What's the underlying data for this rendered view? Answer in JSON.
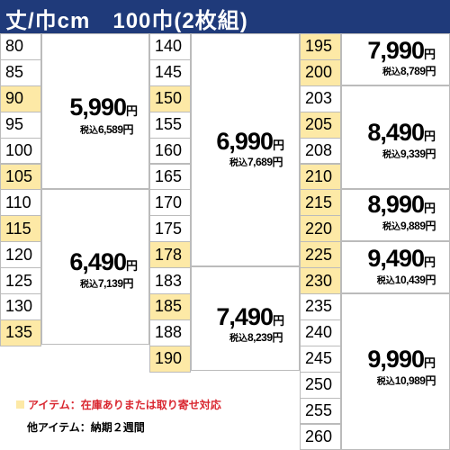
{
  "header": {
    "title": "丈/巾cm　100巾(2枚組)"
  },
  "columns": [
    {
      "sizes": [
        {
          "v": "80",
          "hl": false
        },
        {
          "v": "85",
          "hl": false
        },
        {
          "v": "90",
          "hl": true
        },
        {
          "v": "95",
          "hl": false
        },
        {
          "v": "100",
          "hl": false
        },
        {
          "v": "105",
          "hl": true
        },
        {
          "v": "110",
          "hl": false
        },
        {
          "v": "115",
          "hl": true
        },
        {
          "v": "120",
          "hl": false
        },
        {
          "v": "125",
          "hl": false
        },
        {
          "v": "130",
          "hl": false
        },
        {
          "v": "135",
          "hl": true
        }
      ]
    },
    {
      "sizes": [
        {
          "v": "140",
          "hl": false
        },
        {
          "v": "145",
          "hl": false
        },
        {
          "v": "150",
          "hl": true
        },
        {
          "v": "155",
          "hl": false
        },
        {
          "v": "160",
          "hl": false
        },
        {
          "v": "165",
          "hl": false
        },
        {
          "v": "170",
          "hl": false
        },
        {
          "v": "175",
          "hl": false
        },
        {
          "v": "178",
          "hl": true
        },
        {
          "v": "183",
          "hl": false
        },
        {
          "v": "185",
          "hl": true
        },
        {
          "v": "188",
          "hl": false
        },
        {
          "v": "190",
          "hl": true
        }
      ]
    },
    {
      "sizes": [
        {
          "v": "195",
          "hl": true
        },
        {
          "v": "200",
          "hl": true
        },
        {
          "v": "203",
          "hl": false
        },
        {
          "v": "205",
          "hl": true
        },
        {
          "v": "208",
          "hl": false
        },
        {
          "v": "210",
          "hl": true
        },
        {
          "v": "215",
          "hl": true
        },
        {
          "v": "220",
          "hl": true
        },
        {
          "v": "225",
          "hl": true
        },
        {
          "v": "230",
          "hl": true
        },
        {
          "v": "235",
          "hl": false
        },
        {
          "v": "240",
          "hl": false
        },
        {
          "v": "245",
          "hl": false
        },
        {
          "v": "250",
          "hl": false
        },
        {
          "v": "255",
          "hl": false
        },
        {
          "v": "260",
          "hl": false
        }
      ]
    }
  ],
  "prices": [
    {
      "price": "5,990",
      "yen": "円",
      "tax_label": "税込",
      "tax": "6,589円"
    },
    {
      "price": "6,490",
      "yen": "円",
      "tax_label": "税込",
      "tax": "7,139円"
    },
    {
      "price": "6,990",
      "yen": "円",
      "tax_label": "税込",
      "tax": "7,689円"
    },
    {
      "price": "7,490",
      "yen": "円",
      "tax_label": "税込",
      "tax": "8,239円"
    },
    {
      "price": "7,990",
      "yen": "円",
      "tax_label": "税込",
      "tax": "8,789円"
    },
    {
      "price": "8,490",
      "yen": "円",
      "tax_label": "税込",
      "tax": "9,339円"
    },
    {
      "price": "8,990",
      "yen": "円",
      "tax_label": "税込",
      "tax": "9,889円"
    },
    {
      "price": "9,490",
      "yen": "円",
      "tax_label": "税込",
      "tax": "10,439円"
    },
    {
      "price": "9,990",
      "yen": "円",
      "tax_label": "税込",
      "tax": "10,989円"
    }
  ],
  "legend": {
    "highlight_color": "#fde9a6",
    "highlight_note": "アイテム：在庫ありまたは取り寄せ対応",
    "other_note": "他アイテム：納期２週間"
  }
}
